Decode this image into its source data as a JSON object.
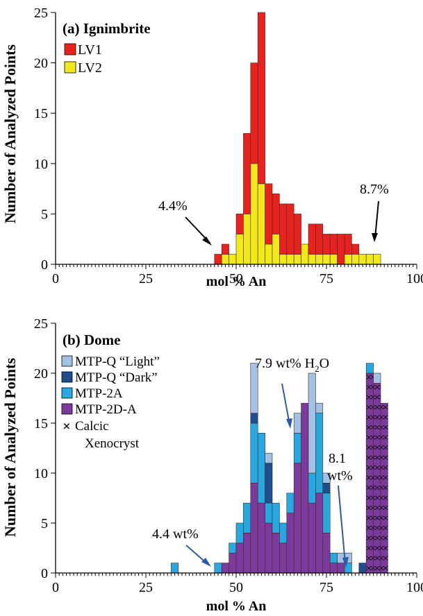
{
  "chart_data": [
    {
      "type": "bar",
      "subtype": "stacked-histogram",
      "panel_label": "(a) Ignimbrite",
      "xlabel": "mol % An",
      "ylabel": "Number of Analyzed Points",
      "xlim": [
        0,
        100
      ],
      "ylim": [
        0,
        25
      ],
      "xticks": [
        0,
        25,
        50,
        75,
        100
      ],
      "yticks": [
        0,
        5,
        10,
        15,
        20,
        25
      ],
      "bin_width": 2,
      "legend_position": "top-left",
      "x": [
        45,
        47,
        49,
        51,
        53,
        55,
        57,
        59,
        61,
        63,
        65,
        67,
        69,
        71,
        73,
        75,
        77,
        79,
        81,
        83,
        85,
        87,
        89
      ],
      "series": [
        {
          "name": "LV2",
          "color": "#f2e81a",
          "values": [
            0,
            1,
            1,
            3,
            5,
            10,
            8,
            2,
            3,
            1,
            1,
            1,
            2,
            1,
            1,
            1,
            1,
            0,
            1,
            1,
            1,
            1,
            1
          ]
        },
        {
          "name": "LV1",
          "color": "#e8231f",
          "values": [
            1,
            1,
            0,
            2,
            8,
            10,
            17,
            6,
            4,
            5,
            5,
            4,
            0,
            3,
            3,
            2,
            2,
            3,
            2,
            1,
            0,
            0,
            0
          ]
        }
      ],
      "annotations": [
        {
          "text": "4.4%",
          "target": [
            45,
            0.5
          ]
        },
        {
          "text": "8.7%",
          "target": [
            89.5,
            0.5
          ]
        }
      ]
    },
    {
      "type": "bar",
      "subtype": "stacked-histogram",
      "panel_label": "(b) Dome",
      "xlabel": "mol % An",
      "ylabel": "Number of Analyzed Points",
      "xlim": [
        0,
        100
      ],
      "ylim": [
        0,
        25
      ],
      "xticks": [
        0,
        25,
        50,
        75,
        100
      ],
      "yticks": [
        0,
        5,
        10,
        15,
        20,
        25
      ],
      "bin_width": 2,
      "legend_position": "top-left",
      "x": [
        33,
        45,
        47,
        49,
        51,
        53,
        55,
        57,
        59,
        61,
        63,
        65,
        67,
        69,
        71,
        73,
        75,
        77,
        79,
        81,
        85,
        87,
        89,
        91
      ],
      "series": [
        {
          "name": "MTP-2D-A",
          "color": "#7b3a9c",
          "values": [
            0,
            0,
            1,
            2,
            3,
            4,
            9,
            7,
            5,
            4,
            3,
            6,
            11,
            17,
            7,
            8,
            4,
            1,
            1,
            0,
            0,
            0,
            0,
            0
          ]
        },
        {
          "name": "MTP-2A",
          "color": "#29a8df",
          "values": [
            1,
            1,
            0,
            1,
            2,
            3,
            6,
            7,
            2,
            3,
            2,
            2,
            3,
            0,
            3,
            8,
            4,
            1,
            0,
            1,
            0,
            0,
            0,
            0
          ]
        },
        {
          "name": "MTP-Q “Dark”",
          "color": "#1f4e8f",
          "values": [
            0,
            0,
            0,
            0,
            0,
            0,
            1,
            0,
            4,
            0,
            0,
            0,
            0,
            0,
            0,
            0,
            1,
            0,
            0,
            0,
            1,
            0,
            0,
            0
          ]
        },
        {
          "name": "MTP-Q “Light”",
          "color": "#a3c1e2",
          "values": [
            0,
            0,
            0,
            0,
            0,
            0,
            5,
            0,
            1,
            0,
            0,
            0,
            2,
            0,
            10,
            1,
            1,
            0,
            1,
            1,
            0,
            0,
            0,
            0
          ]
        },
        {
          "name": "Calcic Xenocryst",
          "color": "#7b3a9c",
          "hatch": "x",
          "values": [
            0,
            0,
            0,
            0,
            0,
            0,
            0,
            0,
            0,
            0,
            0,
            0,
            0,
            0,
            0,
            0,
            0,
            0,
            0,
            0,
            0,
            20,
            19,
            17
          ]
        }
      ],
      "caps": [
        {
          "x": 87,
          "color": "#29a8df",
          "values": 1
        },
        {
          "x": 89,
          "color": "#a3c1e2",
          "values": 1
        }
      ],
      "annotations": [
        {
          "text": "4.4 wt%",
          "target": [
            45,
            1.2
          ]
        },
        {
          "text": "7.9 wt% H₂O",
          "target": [
            66,
            17
          ]
        },
        {
          "text": "8.1 wt%",
          "target": [
            81.5,
            1.2
          ]
        }
      ]
    }
  ]
}
